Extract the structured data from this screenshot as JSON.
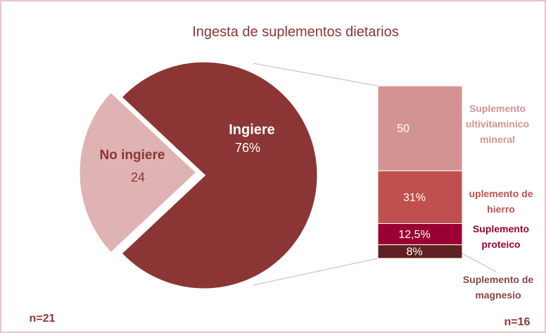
{
  "chart_data": [
    {
      "type": "pie",
      "title": "Ingesta de suplementos dietarios",
      "categories": [
        "Ingiere",
        "No ingiere"
      ],
      "values": [
        76,
        24
      ],
      "value_labels": [
        "76%",
        "24"
      ],
      "colors": [
        "#8c3535",
        "#dfb3b3"
      ],
      "annotation": "n=21"
    },
    {
      "type": "bar",
      "stacked": true,
      "categories": [
        "Suplemento ultivitaminico mineral",
        "uplemento de hierro",
        "Suplemento proteico",
        "Suplemento de magnesio"
      ],
      "values": [
        50,
        31,
        12.5,
        8
      ],
      "value_labels": [
        "50",
        "31%",
        "12,5%",
        "8%"
      ],
      "colors": [
        "#d49393",
        "#c0504d",
        "#9b0033",
        "#5e2020"
      ],
      "label_colors": [
        "#d49393",
        "#c0504d",
        "#9b0033",
        "#8b4545"
      ],
      "annotation": "n=16"
    }
  ]
}
